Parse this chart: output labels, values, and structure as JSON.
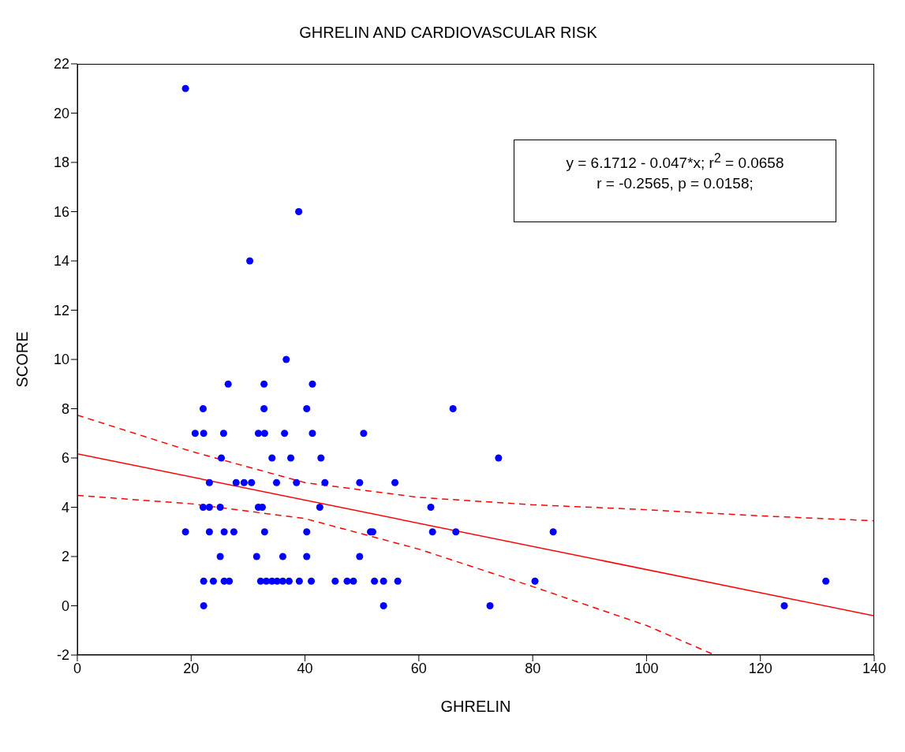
{
  "chart_data": {
    "type": "scatter",
    "title": "GHRELIN AND CARDIOVASCULAR RISK",
    "xlabel": "GHRELIN",
    "ylabel": "SCORE",
    "xlim": [
      0,
      140
    ],
    "xticks": [
      0,
      20,
      40,
      60,
      80,
      100,
      120,
      140
    ],
    "ylim": [
      -2,
      22
    ],
    "yticks": [
      -2,
      0,
      2,
      4,
      6,
      8,
      10,
      12,
      14,
      16,
      18,
      20,
      22
    ],
    "grid": false,
    "legend": false,
    "marker": "circle",
    "annotations": [
      "y = 6.1712 - 0.047*x; r$^{2}$ = 0.0658",
      "r = -0.2565, p = 0.0158;"
    ],
    "series": [
      {
        "color": "#0000ff",
        "x": [
          19.0,
          38.9,
          30.3,
          36.7,
          26.5,
          32.8,
          41.3,
          22.1,
          32.8,
          40.3,
          66.0,
          20.7,
          22.2,
          25.7,
          31.8,
          32.9,
          36.4,
          41.3,
          50.3,
          25.3,
          34.2,
          37.5,
          42.8,
          74.0,
          23.2,
          27.9,
          29.3,
          30.6,
          35.0,
          38.5,
          43.5,
          49.6,
          55.8,
          22.1,
          23.2,
          25.1,
          31.8,
          32.5,
          42.6,
          62.1,
          19.0,
          23.2,
          25.8,
          27.5,
          32.9,
          40.3,
          51.5,
          51.9,
          62.4,
          66.5,
          83.6,
          25.1,
          31.5,
          36.1,
          40.3,
          49.6,
          22.2,
          23.9,
          25.8,
          26.7,
          32.2,
          33.2,
          34.2,
          35.1,
          36.1,
          37.2,
          39.0,
          41.1,
          45.3,
          47.4,
          48.5,
          52.2,
          53.8,
          56.3,
          80.4,
          131.5,
          22.2,
          53.8,
          72.5,
          124.2
        ],
        "values": [
          21,
          16,
          14,
          10,
          9,
          9,
          9,
          8,
          8,
          8,
          8,
          7,
          7,
          7,
          7,
          7,
          7,
          7,
          7,
          6,
          6,
          6,
          6,
          6,
          5,
          5,
          5,
          5,
          5,
          5,
          5,
          5,
          5,
          4,
          4,
          4,
          4,
          4,
          4,
          4,
          3,
          3,
          3,
          3,
          3,
          3,
          3,
          3,
          3,
          3,
          3,
          2,
          2,
          2,
          2,
          2,
          1,
          1,
          1,
          1,
          1,
          1,
          1,
          1,
          1,
          1,
          1,
          1,
          1,
          1,
          1,
          1,
          1,
          1,
          1,
          1,
          0,
          0,
          0,
          0
        ]
      },
      {
        "type": "line",
        "marker": "none",
        "color": "#ff0000",
        "line_style": "solid",
        "x": [
          0,
          140
        ],
        "values": [
          6.17,
          -0.41
        ]
      },
      {
        "type": "line",
        "marker": "none",
        "color": "#ff0000",
        "line_style": "dashed",
        "x": [
          0,
          20,
          40,
          60,
          80,
          100,
          120,
          140
        ],
        "values": [
          7.74,
          6.27,
          5.0,
          4.4,
          4.1,
          3.9,
          3.65,
          3.45
        ]
      },
      {
        "type": "line",
        "marker": "none",
        "color": "#ff0000",
        "line_style": "dashed",
        "x": [
          0,
          20,
          40,
          60,
          80,
          100,
          112
        ],
        "values": [
          4.48,
          4.14,
          3.54,
          2.3,
          0.78,
          -0.8,
          -2
        ]
      }
    ]
  }
}
